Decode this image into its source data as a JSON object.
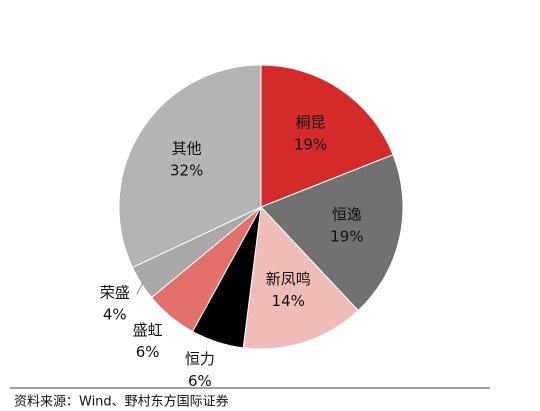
{
  "chart_data": {
    "type": "pie",
    "categories": [
      "桐昆",
      "恒逸",
      "新凤鸣",
      "恒力",
      "盛虹",
      "荣盛",
      "其他"
    ],
    "values": [
      19,
      19,
      14,
      6,
      6,
      4,
      32
    ],
    "value_labels": [
      "19%",
      "19%",
      "14%",
      "6%",
      "6%",
      "4%",
      "32%"
    ],
    "colors": [
      "#d42a2a",
      "#717171",
      "#f0bcb8",
      "#000000",
      "#e4706c",
      "#a9a9a9",
      "#b4b4b4"
    ],
    "source": "资料来源：Wind、野村东方国际证券"
  }
}
